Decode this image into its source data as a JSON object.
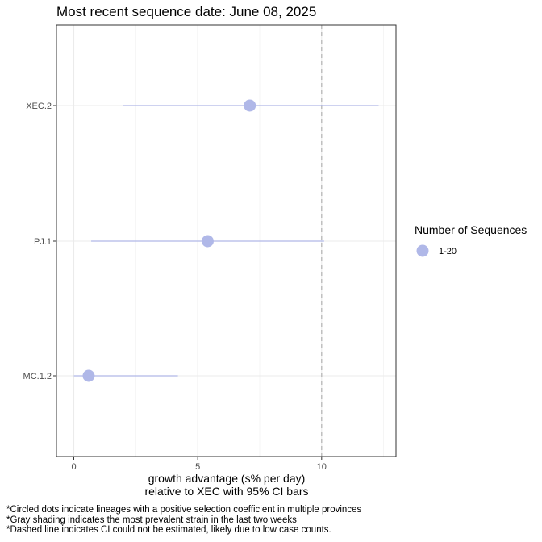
{
  "chart_data": {
    "type": "scatter",
    "title": "Most recent sequence date: June 08, 2025",
    "xlabel_line1": "growth advantage (s% per day)",
    "xlabel_line2": "relative to  XEC  with 95% CI bars",
    "ylabel": "",
    "xlim": [
      -0.7,
      13.0
    ],
    "x_ticks": [
      0,
      5,
      10
    ],
    "grid": true,
    "dashed_vline_x": 10,
    "categories": [
      "XEC.2",
      "PJ.1",
      "MC.1.2"
    ],
    "points": [
      {
        "label": "XEC.2",
        "value": 7.1,
        "ci_low": 2.0,
        "ci_high": 12.3
      },
      {
        "label": "PJ.1",
        "value": 5.4,
        "ci_low": 0.7,
        "ci_high": 10.1
      },
      {
        "label": "MC.1.2",
        "value": 0.6,
        "ci_low": 0.0,
        "ci_high": 4.2
      }
    ],
    "point_color": "#b0b8e8",
    "line_color": "#b0b8e8",
    "legend": {
      "title": "Number of Sequences",
      "entries": [
        {
          "label": "1-20",
          "color": "#b0b8e8"
        }
      ],
      "placement": "right"
    }
  },
  "footnotes": [
    "*Circled dots indicate lineages with a positive selection coefficient in multiple provinces",
    "*Gray shading indicates the most prevalent strain in the last two weeks",
    "*Dashed line indicates CI could not be estimated, likely due to low case counts."
  ]
}
